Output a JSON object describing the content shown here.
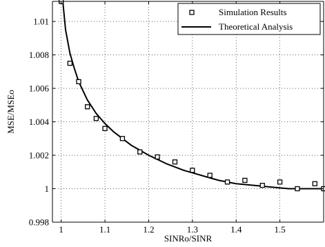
{
  "chart_data": {
    "type": "line",
    "title": "",
    "xlabel": "SINRo/SINR",
    "ylabel": "MSE/MSEo",
    "xlim": [
      0.98,
      1.6
    ],
    "ylim": [
      0.998,
      1.0112
    ],
    "xticks": [
      1,
      1.1,
      1.2,
      1.3,
      1.4,
      1.5
    ],
    "xtick_labels": [
      "1",
      "1.1",
      "1.2",
      "1.3",
      "1.4",
      "1.5"
    ],
    "yticks": [
      0.998,
      1,
      1.002,
      1.004,
      1.006,
      1.008,
      1.01
    ],
    "ytick_labels": [
      "0.998",
      "1",
      "1.002",
      "1.004",
      "1.006",
      "1.008",
      "1.01"
    ],
    "grid": true,
    "legend_position": "top-right",
    "colors": {
      "axis": "#000000",
      "grid": "#000000",
      "series": "#000000",
      "background": "#ffffff"
    },
    "series": [
      {
        "name": "Simulation Results",
        "style": "markers",
        "marker": "hollow-square",
        "points": [
          {
            "x": 1.0,
            "y": 1.0112
          },
          {
            "x": 1.02,
            "y": 1.0075
          },
          {
            "x": 1.04,
            "y": 1.0064
          },
          {
            "x": 1.06,
            "y": 1.0049
          },
          {
            "x": 1.08,
            "y": 1.0042
          },
          {
            "x": 1.1,
            "y": 1.0036
          },
          {
            "x": 1.14,
            "y": 1.003
          },
          {
            "x": 1.18,
            "y": 1.0022
          },
          {
            "x": 1.22,
            "y": 1.0019
          },
          {
            "x": 1.26,
            "y": 1.0016
          },
          {
            "x": 1.3,
            "y": 1.0011
          },
          {
            "x": 1.34,
            "y": 1.0008
          },
          {
            "x": 1.38,
            "y": 1.0004
          },
          {
            "x": 1.42,
            "y": 1.0005
          },
          {
            "x": 1.46,
            "y": 1.0002
          },
          {
            "x": 1.5,
            "y": 1.0004
          },
          {
            "x": 1.54,
            "y": 1.0
          },
          {
            "x": 1.58,
            "y": 1.0003
          },
          {
            "x": 1.6,
            "y": 1.0
          }
        ]
      },
      {
        "name": "Theoretical Analysis",
        "style": "line",
        "points": [
          {
            "x": 1.0,
            "y": 1.0122
          },
          {
            "x": 1.01,
            "y": 1.0095
          },
          {
            "x": 1.02,
            "y": 1.0081
          },
          {
            "x": 1.03,
            "y": 1.0072
          },
          {
            "x": 1.04,
            "y": 1.0064
          },
          {
            "x": 1.06,
            "y": 1.0053
          },
          {
            "x": 1.08,
            "y": 1.0045
          },
          {
            "x": 1.1,
            "y": 1.0039
          },
          {
            "x": 1.12,
            "y": 1.0034
          },
          {
            "x": 1.14,
            "y": 1.003
          },
          {
            "x": 1.16,
            "y": 1.0026
          },
          {
            "x": 1.18,
            "y": 1.0023
          },
          {
            "x": 1.2,
            "y": 1.002
          },
          {
            "x": 1.24,
            "y": 1.0015
          },
          {
            "x": 1.28,
            "y": 1.0011
          },
          {
            "x": 1.32,
            "y": 1.0008
          },
          {
            "x": 1.36,
            "y": 1.0005
          },
          {
            "x": 1.4,
            "y": 1.0003
          },
          {
            "x": 1.44,
            "y": 1.0002
          },
          {
            "x": 1.48,
            "y": 1.0001
          },
          {
            "x": 1.52,
            "y": 1.0
          },
          {
            "x": 1.56,
            "y": 1.0
          },
          {
            "x": 1.6,
            "y": 1.0
          }
        ]
      }
    ]
  }
}
